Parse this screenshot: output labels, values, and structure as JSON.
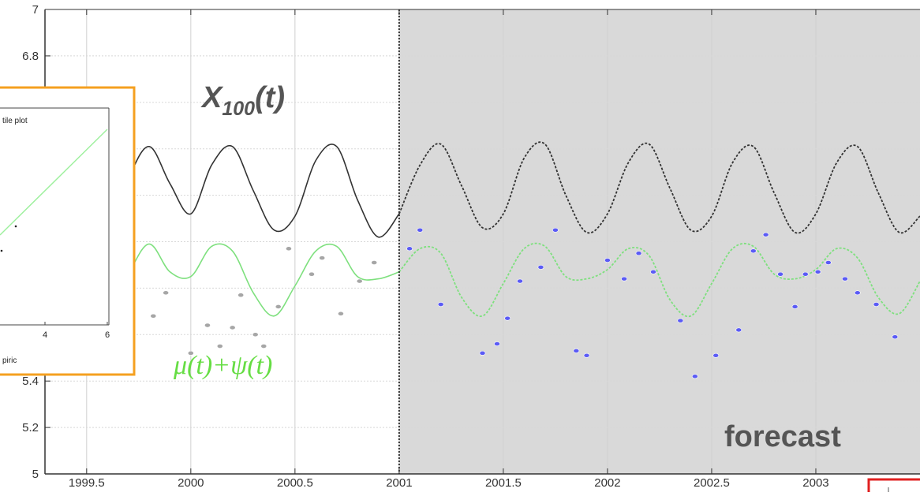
{
  "chart_data": {
    "type": "line",
    "title": "",
    "xlabel": "",
    "ylabel": "",
    "xlim": [
      1999.3,
      2003.5
    ],
    "ylim": [
      5.0,
      7.0
    ],
    "x_ticks": [
      1999.5,
      2000,
      2000.5,
      2001,
      2001.5,
      2002,
      2002.5,
      2003
    ],
    "x_tick_labels": [
      "1999.5",
      "2000",
      "2000.5",
      "2001",
      "2001.5",
      "2002",
      "2002.5",
      "2003"
    ],
    "y_ticks": [
      5.0,
      5.2,
      5.4,
      6.8,
      7.0
    ],
    "y_tick_labels": [
      "5",
      "5.2",
      "5.4",
      "6.8",
      "7"
    ],
    "grid": true,
    "forecast_start": 2001,
    "shade_color": "#d9d9d9",
    "series": [
      {
        "color": "#333333",
        "style": "solid-then-dashed",
        "x": [
          1999.5,
          1999.6,
          1999.7,
          1999.8,
          1999.9,
          2000.0,
          2000.1,
          2000.2,
          2000.3,
          2000.4,
          2000.5,
          2000.6,
          2000.7,
          2000.8,
          2000.9,
          2001.0,
          2001.1,
          2001.2,
          2001.3,
          2001.4,
          2001.5,
          2001.6,
          2001.7,
          2001.8,
          2001.9,
          2002.0,
          2002.1,
          2002.2,
          2002.3,
          2002.4,
          2002.5,
          2002.6,
          2002.7,
          2002.8,
          2002.9,
          2003.0,
          2003.1,
          2003.2,
          2003.3,
          2003.4,
          2003.5
        ],
        "y": [
          6.12,
          6.02,
          6.27,
          6.41,
          6.25,
          6.12,
          6.33,
          6.41,
          6.22,
          6.05,
          6.11,
          6.35,
          6.41,
          6.18,
          6.02,
          6.12,
          6.33,
          6.42,
          6.24,
          6.06,
          6.12,
          6.36,
          6.42,
          6.2,
          6.04,
          6.12,
          6.34,
          6.42,
          6.23,
          6.05,
          6.11,
          6.34,
          6.41,
          6.21,
          6.04,
          6.12,
          6.34,
          6.41,
          6.21,
          6.04,
          6.11
        ]
      },
      {
        "color": "#7ee07e",
        "style": "solid-then-dashed",
        "x": [
          1999.5,
          1999.6,
          1999.7,
          1999.8,
          1999.9,
          2000.0,
          2000.1,
          2000.2,
          2000.3,
          2000.4,
          2000.5,
          2000.6,
          2000.7,
          2000.8,
          2000.9,
          2001.0,
          2001.1,
          2001.2,
          2001.3,
          2001.4,
          2001.5,
          2001.6,
          2001.7,
          2001.8,
          2001.9,
          2002.0,
          2002.1,
          2002.2,
          2002.3,
          2002.4,
          2002.5,
          2002.6,
          2002.7,
          2002.8,
          2002.9,
          2003.0,
          2003.1,
          2003.2,
          2003.3,
          2003.4,
          2003.5
        ],
        "y": [
          5.83,
          5.69,
          5.86,
          5.99,
          5.87,
          5.85,
          5.98,
          5.96,
          5.78,
          5.68,
          5.81,
          5.96,
          5.98,
          5.85,
          5.84,
          5.87,
          5.97,
          5.95,
          5.76,
          5.68,
          5.82,
          5.97,
          5.98,
          5.85,
          5.84,
          5.88,
          5.97,
          5.94,
          5.75,
          5.68,
          5.82,
          5.97,
          5.98,
          5.86,
          5.84,
          5.88,
          5.97,
          5.93,
          5.76,
          5.69,
          5.83
        ]
      },
      {
        "type": "scatter",
        "color": "#a6a6a6",
        "x": [
          1999.82,
          1999.88,
          2000.0,
          2000.08,
          2000.14,
          2000.2,
          2000.24,
          2000.31,
          2000.35,
          2000.42,
          2000.47,
          2000.58,
          2000.63,
          2000.72,
          2000.81,
          2000.88
        ],
        "y": [
          5.68,
          5.78,
          5.52,
          5.64,
          5.55,
          5.63,
          5.77,
          5.6,
          5.55,
          5.72,
          5.97,
          5.86,
          5.93,
          5.69,
          5.83,
          5.91
        ]
      },
      {
        "type": "scatter",
        "color": "#5b5bf5",
        "x": [
          2001.05,
          2001.1,
          2001.2,
          2001.4,
          2001.47,
          2001.52,
          2001.58,
          2001.68,
          2001.75,
          2001.85,
          2001.9,
          2002.0,
          2002.08,
          2002.15,
          2002.22,
          2002.35,
          2002.42,
          2002.52,
          2002.63,
          2002.7,
          2002.76,
          2002.83,
          2002.9,
          2002.95,
          2003.01,
          2003.06,
          2003.14,
          2003.2,
          2003.29,
          2003.38
        ],
        "y": [
          5.97,
          6.05,
          5.73,
          5.52,
          5.56,
          5.67,
          5.83,
          5.89,
          6.05,
          5.53,
          5.51,
          5.92,
          5.84,
          5.95,
          5.87,
          5.66,
          5.42,
          5.51,
          5.62,
          5.96,
          6.03,
          5.86,
          5.72,
          5.86,
          5.87,
          5.91,
          5.84,
          5.78,
          5.73,
          5.59
        ]
      }
    ],
    "annotations": {
      "gray_curve_label_base": "X",
      "gray_curve_label_sub": "100",
      "gray_curve_label_suffix": "(t)",
      "green_curve_label": "μ(t)+ψ(t)",
      "forecast_label": "forecast"
    },
    "inset": {
      "title_fragment": "tile plot",
      "xlabel_fragment": "piric",
      "x_tick_labels": [
        "4",
        "6"
      ],
      "line_color": "#9ef09e",
      "border_color": "#f5a020"
    }
  }
}
